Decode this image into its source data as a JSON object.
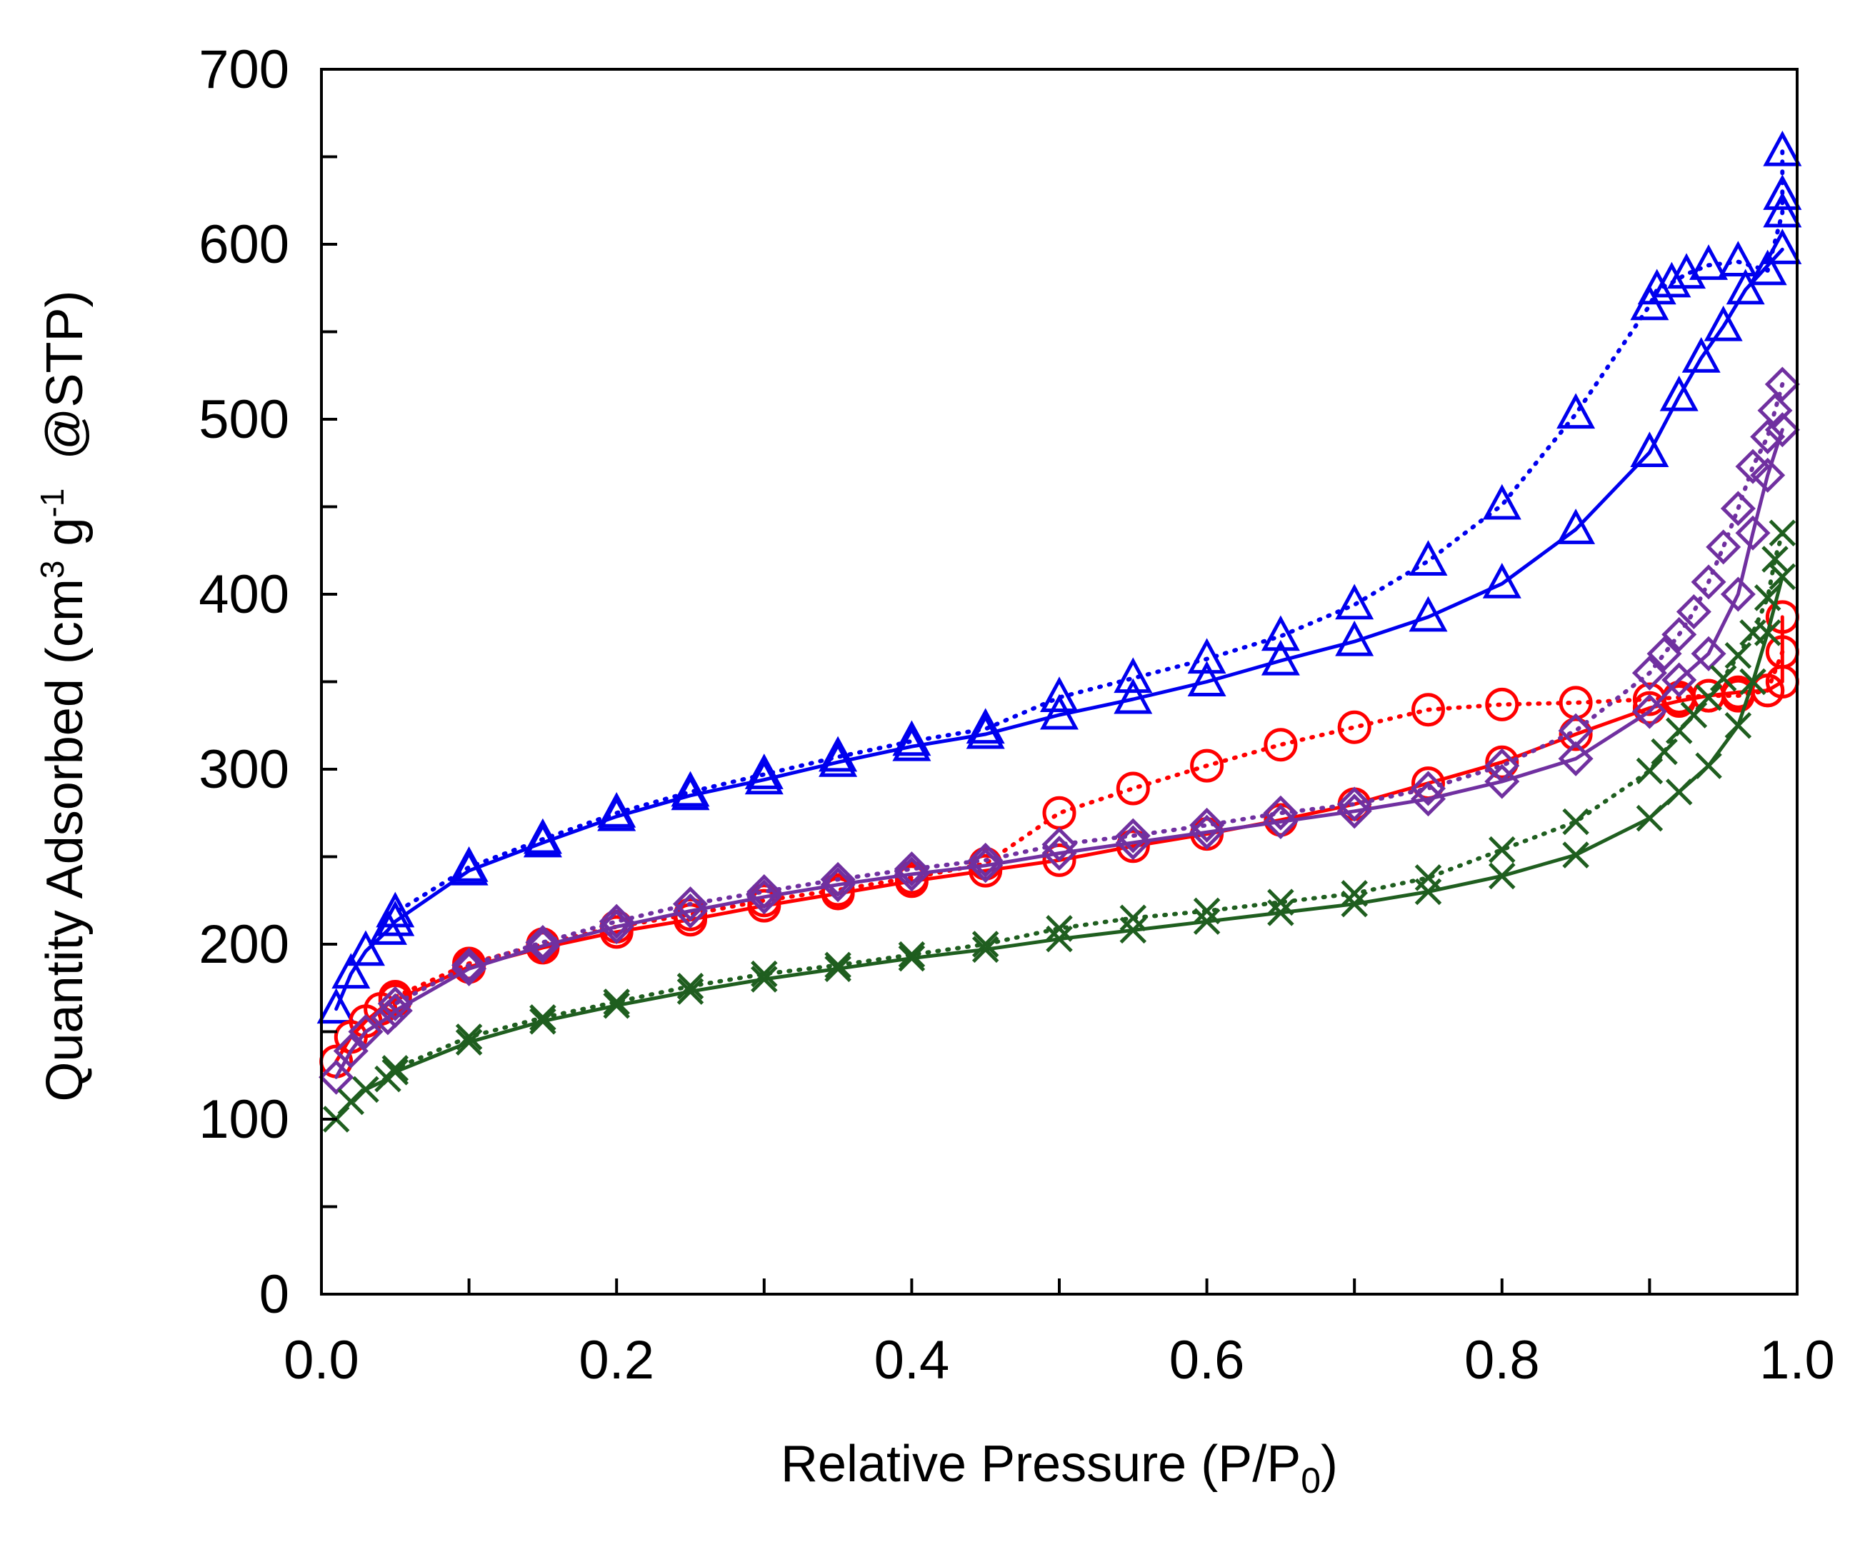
{
  "chart_data": {
    "type": "line",
    "title": "",
    "xlabel": "Relative Pressure (P/P",
    "xlabel_sub": "0",
    "xlabel_end": ")",
    "ylabel_pre": "Quantity Adsorbed (cm",
    "ylabel_sup1": "3",
    "ylabel_mid": " g",
    "ylabel_sup2": "-1",
    "ylabel_post": "  @STP)",
    "xlim": [
      0,
      1.0
    ],
    "ylim": [
      0,
      700
    ],
    "x_major_ticks": [
      0.0,
      0.2,
      0.4,
      0.6,
      0.8,
      1.0
    ],
    "x_tick_labels": [
      "0.0",
      "0.2",
      "0.4",
      "0.6",
      "0.8",
      "1.0"
    ],
    "x_minor_step": 0.1,
    "y_major_ticks": [
      0,
      100,
      200,
      300,
      400,
      500,
      600,
      700
    ],
    "y_tick_labels": [
      "0",
      "100",
      "200",
      "300",
      "400",
      "500",
      "600",
      "700"
    ],
    "y_minor_step": 50,
    "grid": false,
    "legend": "none",
    "series": [
      {
        "name": "blue-adsorption",
        "color": "#0000EE",
        "marker": "triangle",
        "line": "solid",
        "x": [
          0.01,
          0.02,
          0.03,
          0.045,
          0.05,
          0.1,
          0.15,
          0.2,
          0.25,
          0.3,
          0.35,
          0.4,
          0.45,
          0.5,
          0.55,
          0.6,
          0.65,
          0.7,
          0.75,
          0.8,
          0.85,
          0.9,
          0.92,
          0.935,
          0.95,
          0.965,
          0.99
        ],
        "y": [
          163,
          183,
          196,
          208,
          213,
          242,
          258,
          273,
          285,
          294,
          304,
          313,
          320,
          331,
          340,
          350,
          362,
          373,
          387,
          406,
          437,
          481,
          513,
          535,
          553,
          574,
          597
        ]
      },
      {
        "name": "blue-desorption",
        "color": "#0000EE",
        "marker": "triangle",
        "line": "dotted",
        "x": [
          0.99,
          0.99,
          0.99,
          0.98,
          0.96,
          0.94,
          0.925,
          0.915,
          0.905,
          0.9,
          0.85,
          0.8,
          0.75,
          0.7,
          0.65,
          0.6,
          0.55,
          0.5,
          0.45,
          0.4,
          0.35,
          0.3,
          0.25,
          0.2,
          0.15,
          0.1,
          0.05
        ],
        "y": [
          653,
          628,
          618,
          585,
          590,
          588,
          583,
          578,
          574,
          565,
          503,
          451,
          419,
          394,
          376,
          363,
          352,
          341,
          323,
          316,
          307,
          297,
          287,
          275,
          260,
          244,
          218
        ]
      },
      {
        "name": "red-adsorption",
        "color": "#FF0000",
        "marker": "circle",
        "line": "solid",
        "x": [
          0.01,
          0.02,
          0.03,
          0.04,
          0.05,
          0.1,
          0.15,
          0.2,
          0.25,
          0.3,
          0.35,
          0.4,
          0.45,
          0.5,
          0.55,
          0.6,
          0.65,
          0.7,
          0.75,
          0.8,
          0.85,
          0.9,
          0.92,
          0.94,
          0.96,
          0.98,
          0.99,
          0.99
        ],
        "y": [
          133,
          147,
          156,
          163,
          168,
          187,
          198,
          207,
          214,
          222,
          229,
          236,
          242,
          248,
          256,
          263,
          271,
          280,
          292,
          304,
          320,
          335,
          339,
          342,
          344,
          345,
          350,
          387
        ]
      },
      {
        "name": "red-desorption",
        "color": "#FF0000",
        "marker": "circle",
        "line": "dotted",
        "x": [
          0.99,
          0.98,
          0.96,
          0.94,
          0.92,
          0.9,
          0.85,
          0.8,
          0.75,
          0.7,
          0.65,
          0.6,
          0.55,
          0.5,
          0.45,
          0.4,
          0.35,
          0.3,
          0.25,
          0.2,
          0.15,
          0.1,
          0.05
        ],
        "y": [
          367,
          345,
          342,
          342,
          341,
          340,
          338,
          337,
          334,
          324,
          314,
          302,
          289,
          275,
          246,
          238,
          231,
          225,
          217,
          210,
          200,
          189,
          170
        ]
      },
      {
        "name": "purple-adsorption",
        "color": "#7030A0",
        "marker": "diamond",
        "line": "solid",
        "x": [
          0.01,
          0.02,
          0.03,
          0.045,
          0.05,
          0.1,
          0.15,
          0.2,
          0.25,
          0.3,
          0.35,
          0.4,
          0.45,
          0.5,
          0.55,
          0.6,
          0.65,
          0.7,
          0.75,
          0.8,
          0.85,
          0.9,
          0.92,
          0.94,
          0.96,
          0.97,
          0.98,
          0.99
        ],
        "y": [
          124,
          139,
          150,
          158,
          162,
          186,
          199,
          210,
          219,
          227,
          234,
          240,
          245,
          252,
          258,
          264,
          270,
          276,
          283,
          293,
          306,
          333,
          351,
          366,
          400,
          435,
          468,
          494
        ]
      },
      {
        "name": "purple-desorption",
        "color": "#7030A0",
        "marker": "diamond",
        "line": "dotted",
        "x": [
          0.99,
          0.985,
          0.98,
          0.97,
          0.96,
          0.95,
          0.94,
          0.93,
          0.92,
          0.91,
          0.9,
          0.85,
          0.8,
          0.75,
          0.7,
          0.65,
          0.6,
          0.55,
          0.5,
          0.45,
          0.4,
          0.35,
          0.3,
          0.25,
          0.2,
          0.15,
          0.1,
          0.05
        ],
        "y": [
          520,
          505,
          490,
          473,
          449,
          427,
          407,
          390,
          377,
          366,
          355,
          322,
          302,
          289,
          280,
          275,
          268,
          262,
          257,
          248,
          243,
          237,
          230,
          223,
          213,
          201,
          188,
          166
        ]
      },
      {
        "name": "green-adsorption",
        "color": "#1F5E1F",
        "marker": "x",
        "line": "solid",
        "x": [
          0.01,
          0.02,
          0.03,
          0.045,
          0.05,
          0.1,
          0.15,
          0.2,
          0.25,
          0.3,
          0.35,
          0.4,
          0.45,
          0.5,
          0.55,
          0.6,
          0.65,
          0.7,
          0.75,
          0.8,
          0.85,
          0.9,
          0.92,
          0.94,
          0.96,
          0.97,
          0.98,
          0.99
        ],
        "y": [
          100,
          110,
          117,
          123,
          127,
          144,
          156,
          165,
          173,
          180,
          186,
          192,
          197,
          203,
          208,
          213,
          218,
          223,
          230,
          239,
          251,
          272,
          287,
          302,
          325,
          350,
          378,
          410
        ]
      },
      {
        "name": "green-desorption",
        "color": "#1F5E1F",
        "marker": "x",
        "line": "dotted",
        "x": [
          0.99,
          0.985,
          0.98,
          0.97,
          0.96,
          0.95,
          0.94,
          0.93,
          0.92,
          0.91,
          0.9,
          0.85,
          0.8,
          0.75,
          0.7,
          0.65,
          0.6,
          0.55,
          0.5,
          0.45,
          0.4,
          0.35,
          0.3,
          0.25,
          0.2,
          0.15,
          0.1,
          0.05
        ],
        "y": [
          435,
          420,
          398,
          378,
          365,
          352,
          341,
          331,
          322,
          310,
          299,
          270,
          254,
          238,
          229,
          224,
          219,
          215,
          209,
          200,
          194,
          188,
          183,
          176,
          167,
          158,
          147,
          129
        ]
      }
    ]
  }
}
